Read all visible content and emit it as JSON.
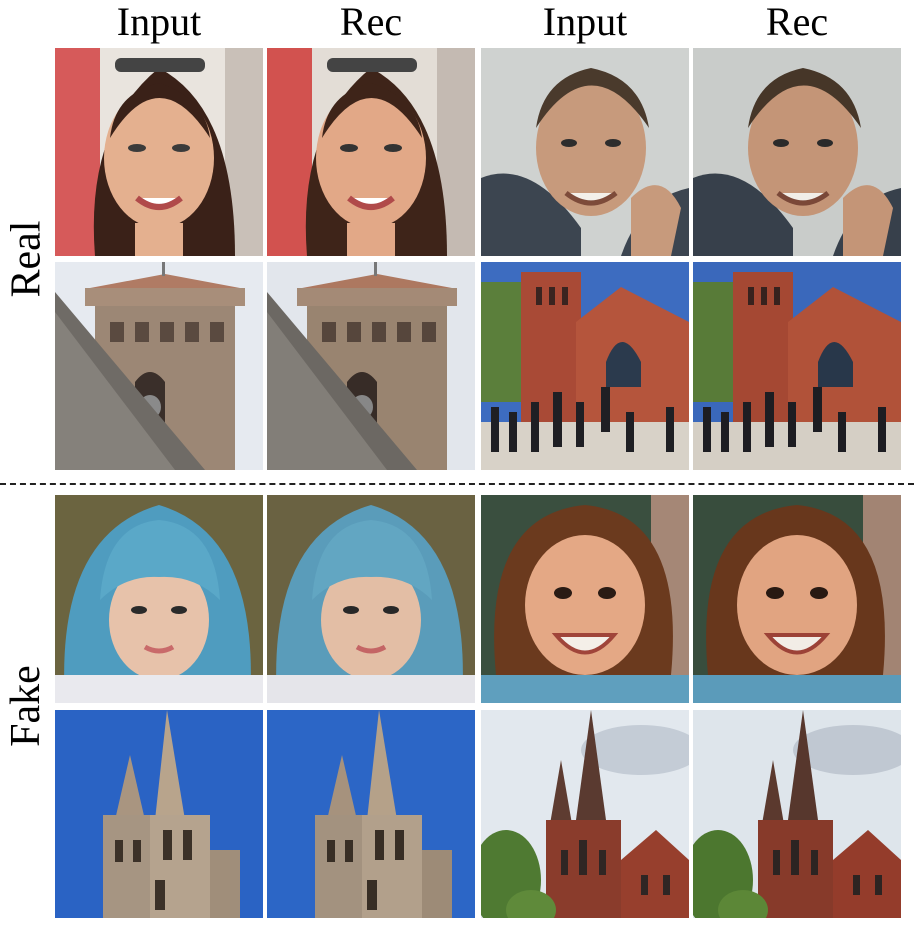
{
  "columns": [
    "Input",
    "Rec",
    "Input",
    "Rec"
  ],
  "groups": [
    "Real",
    "Fake"
  ],
  "images": {
    "real_portrait_woman": "woman portrait with sunglasses on head",
    "real_portrait_man": "smiling man portrait",
    "real_bell_tower": "stone bell tower",
    "real_church": "brick church with crowd",
    "fake_portrait_blue_hair": "person with blue hair",
    "fake_portrait_child": "smiling curly-haired child",
    "fake_spires_blue_sky": "twin church spires on blue sky",
    "fake_red_church": "red brick gothic church with trees"
  },
  "colors": {
    "divider": "#222222",
    "text": "#000000"
  }
}
